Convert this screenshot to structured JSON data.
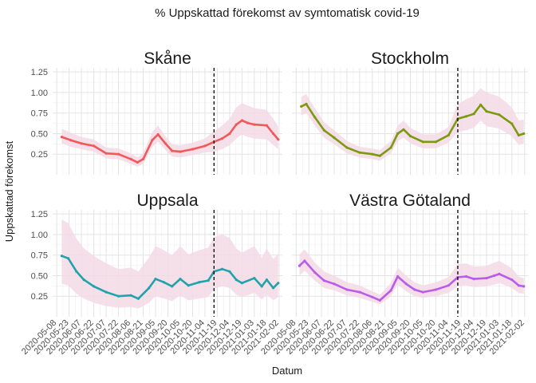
{
  "chart_data": {
    "type": "line",
    "title": "% Uppskattad förekomst av symtomatisk covid-19",
    "xlabel": "Datum",
    "ylabel": "Uppskattad förekomst",
    "ylim": [
      0.0,
      1.3
    ],
    "yticks": [
      0.25,
      0.5,
      0.75,
      1.0,
      1.25
    ],
    "ytick_labels": [
      "0.25",
      "0.50",
      "0.75",
      "1.00",
      "1.25"
    ],
    "xlim": [
      "2020-05-03",
      "2021-02-06"
    ],
    "xticks": [
      "2020-05-08",
      "2020-05-23",
      "2020-06-07",
      "2020-06-22",
      "2020-07-07",
      "2020-07-22",
      "2020-08-06",
      "2020-08-21",
      "2020-09-05",
      "2020-09-20",
      "2020-10-05",
      "2020-10-20",
      "2020-11-04",
      "2020-11-19",
      "2020-12-04",
      "2020-12-19",
      "2021-01-03",
      "2021-01-18",
      "2021-02-02"
    ],
    "vline_date": "2020-11-15",
    "grid": true,
    "band_color": "#f3dbe6",
    "panels": [
      {
        "name": "Skåne",
        "color": "#f0595a",
        "x": [
          "2020-05-14",
          "2020-05-25",
          "2020-06-07",
          "2020-06-22",
          "2020-07-07",
          "2020-07-22",
          "2020-08-06",
          "2020-08-14",
          "2020-08-21",
          "2020-09-01",
          "2020-09-08",
          "2020-09-17",
          "2020-09-25",
          "2020-10-05",
          "2020-10-20",
          "2020-11-04",
          "2020-11-15",
          "2020-11-25",
          "2020-12-04",
          "2020-12-12",
          "2020-12-19",
          "2020-12-26",
          "2021-01-03",
          "2021-01-18",
          "2021-01-26",
          "2021-02-01"
        ],
        "y": [
          0.46,
          0.42,
          0.38,
          0.35,
          0.26,
          0.25,
          0.19,
          0.15,
          0.19,
          0.42,
          0.49,
          0.38,
          0.29,
          0.28,
          0.31,
          0.35,
          0.4,
          0.44,
          0.5,
          0.61,
          0.66,
          0.63,
          0.61,
          0.6,
          0.5,
          0.43
        ],
        "lower": [
          0.38,
          0.34,
          0.31,
          0.28,
          0.2,
          0.19,
          0.13,
          0.1,
          0.13,
          0.34,
          0.4,
          0.3,
          0.22,
          0.21,
          0.24,
          0.27,
          0.28,
          0.31,
          0.36,
          0.44,
          0.49,
          0.46,
          0.44,
          0.43,
          0.36,
          0.31
        ],
        "upper": [
          0.56,
          0.51,
          0.46,
          0.43,
          0.33,
          0.32,
          0.26,
          0.21,
          0.26,
          0.52,
          0.6,
          0.47,
          0.37,
          0.36,
          0.39,
          0.44,
          0.53,
          0.6,
          0.68,
          0.82,
          0.87,
          0.84,
          0.81,
          0.79,
          0.68,
          0.59
        ]
      },
      {
        "name": "Stockholm",
        "color": "#7a9a0f",
        "x": [
          "2020-05-14",
          "2020-05-20",
          "2020-05-30",
          "2020-06-10",
          "2020-06-22",
          "2020-07-07",
          "2020-07-22",
          "2020-08-06",
          "2020-08-15",
          "2020-08-28",
          "2020-09-05",
          "2020-09-12",
          "2020-09-20",
          "2020-10-05",
          "2020-10-20",
          "2020-11-04",
          "2020-11-15",
          "2020-11-25",
          "2020-12-04",
          "2020-12-12",
          "2020-12-19",
          "2021-01-03",
          "2021-01-18",
          "2021-01-26",
          "2021-02-01"
        ],
        "y": [
          0.83,
          0.86,
          0.7,
          0.54,
          0.45,
          0.33,
          0.27,
          0.25,
          0.23,
          0.33,
          0.5,
          0.55,
          0.47,
          0.4,
          0.4,
          0.48,
          0.68,
          0.71,
          0.74,
          0.85,
          0.77,
          0.73,
          0.62,
          0.48,
          0.5
        ],
        "lower": [
          0.72,
          0.75,
          0.6,
          0.45,
          0.37,
          0.26,
          0.21,
          0.19,
          0.17,
          0.26,
          0.41,
          0.45,
          0.38,
          0.32,
          0.32,
          0.39,
          0.52,
          0.54,
          0.57,
          0.66,
          0.59,
          0.56,
          0.47,
          0.36,
          0.38
        ],
        "upper": [
          0.95,
          0.98,
          0.81,
          0.64,
          0.54,
          0.41,
          0.34,
          0.32,
          0.3,
          0.41,
          0.6,
          0.66,
          0.57,
          0.49,
          0.49,
          0.58,
          0.86,
          0.92,
          0.96,
          1.05,
          1.0,
          0.95,
          0.82,
          0.66,
          0.67
        ]
      },
      {
        "name": "Uppsala",
        "color": "#22a2ab",
        "x": [
          "2020-05-14",
          "2020-05-22",
          "2020-06-01",
          "2020-06-10",
          "2020-06-22",
          "2020-07-07",
          "2020-07-22",
          "2020-08-06",
          "2020-08-15",
          "2020-08-28",
          "2020-09-05",
          "2020-09-15",
          "2020-09-25",
          "2020-10-05",
          "2020-10-15",
          "2020-10-28",
          "2020-11-08",
          "2020-11-15",
          "2020-11-25",
          "2020-12-04",
          "2020-12-12",
          "2020-12-19",
          "2021-01-03",
          "2021-01-12",
          "2021-01-18",
          "2021-01-26",
          "2021-02-01"
        ],
        "y": [
          0.74,
          0.71,
          0.55,
          0.45,
          0.37,
          0.3,
          0.25,
          0.26,
          0.22,
          0.35,
          0.46,
          0.42,
          0.37,
          0.46,
          0.38,
          0.42,
          0.44,
          0.55,
          0.58,
          0.55,
          0.45,
          0.41,
          0.47,
          0.37,
          0.45,
          0.35,
          0.41
        ],
        "lower": [
          0.4,
          0.38,
          0.28,
          0.22,
          0.17,
          0.13,
          0.11,
          0.12,
          0.1,
          0.17,
          0.25,
          0.22,
          0.19,
          0.26,
          0.2,
          0.22,
          0.24,
          0.34,
          0.37,
          0.35,
          0.27,
          0.24,
          0.29,
          0.21,
          0.27,
          0.2,
          0.24
        ],
        "upper": [
          1.18,
          1.14,
          0.95,
          0.83,
          0.74,
          0.65,
          0.58,
          0.6,
          0.55,
          0.72,
          0.86,
          0.81,
          0.75,
          0.86,
          0.76,
          0.81,
          0.84,
          0.97,
          1.0,
          0.96,
          0.83,
          0.78,
          0.86,
          0.72,
          0.83,
          0.7,
          0.77
        ]
      },
      {
        "name": "Västra Götaland",
        "color": "#bb5ce8",
        "x": [
          "2020-05-12",
          "2020-05-18",
          "2020-05-30",
          "2020-06-10",
          "2020-06-22",
          "2020-07-07",
          "2020-07-22",
          "2020-08-06",
          "2020-08-15",
          "2020-08-28",
          "2020-09-05",
          "2020-09-15",
          "2020-09-25",
          "2020-10-05",
          "2020-10-20",
          "2020-11-04",
          "2020-11-15",
          "2020-11-25",
          "2020-12-04",
          "2020-12-19",
          "2020-12-28",
          "2021-01-03",
          "2021-01-18",
          "2021-01-26",
          "2021-02-01"
        ],
        "y": [
          0.62,
          0.68,
          0.54,
          0.44,
          0.4,
          0.33,
          0.3,
          0.24,
          0.2,
          0.32,
          0.49,
          0.4,
          0.33,
          0.3,
          0.33,
          0.38,
          0.48,
          0.49,
          0.46,
          0.47,
          0.5,
          0.52,
          0.45,
          0.38,
          0.37
        ],
        "lower": [
          0.5,
          0.56,
          0.44,
          0.35,
          0.32,
          0.26,
          0.23,
          0.18,
          0.15,
          0.25,
          0.39,
          0.31,
          0.25,
          0.23,
          0.25,
          0.29,
          0.37,
          0.38,
          0.36,
          0.37,
          0.39,
          0.41,
          0.35,
          0.29,
          0.28
        ],
        "upper": [
          0.76,
          0.82,
          0.66,
          0.55,
          0.5,
          0.42,
          0.38,
          0.31,
          0.27,
          0.41,
          0.6,
          0.5,
          0.42,
          0.38,
          0.42,
          0.48,
          0.64,
          0.65,
          0.61,
          0.62,
          0.66,
          0.68,
          0.59,
          0.49,
          0.47
        ]
      }
    ]
  }
}
